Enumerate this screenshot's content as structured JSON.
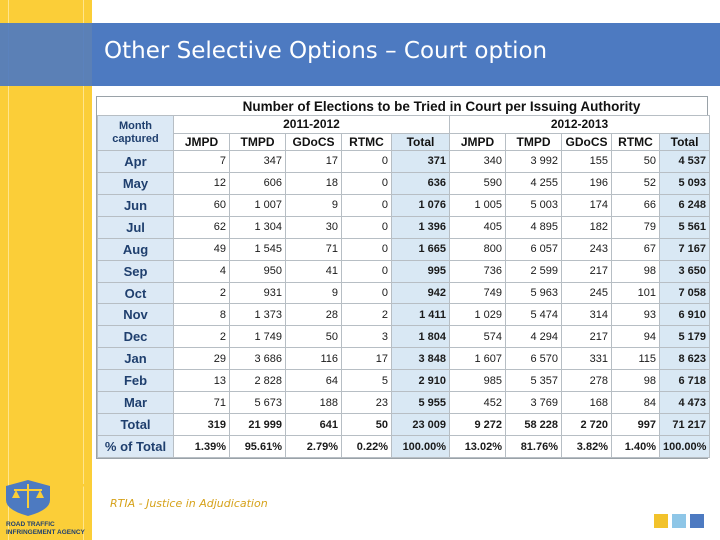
{
  "slide": {
    "title": "Other Selective Options – Court option",
    "footer_text": "RTIA - Justice in Adjudication",
    "logo_text_line1": "ROAD TRAFFIC",
    "logo_text_line2": "INFRINGEMENT AGENCY"
  },
  "table": {
    "heading": "Number of Elections to be Tried in Court per Issuing Authority",
    "month_header_line1": "Month",
    "month_header_line2": "captured",
    "year1": "2011-2012",
    "year2": "2012-2013",
    "columns": [
      "JMPD",
      "TMPD",
      "GDoCS",
      "RTMC",
      "Total",
      "JMPD",
      "TMPD",
      "GDoCS",
      "RTMC",
      "Total"
    ],
    "rows": [
      {
        "month": "Apr",
        "v": [
          "7",
          "347",
          "17",
          "0",
          "371",
          "340",
          "3 992",
          "155",
          "50",
          "4 537"
        ]
      },
      {
        "month": "May",
        "v": [
          "12",
          "606",
          "18",
          "0",
          "636",
          "590",
          "4 255",
          "196",
          "52",
          "5 093"
        ]
      },
      {
        "month": "Jun",
        "v": [
          "60",
          "1 007",
          "9",
          "0",
          "1 076",
          "1 005",
          "5 003",
          "174",
          "66",
          "6 248"
        ]
      },
      {
        "month": "Jul",
        "v": [
          "62",
          "1 304",
          "30",
          "0",
          "1 396",
          "405",
          "4 895",
          "182",
          "79",
          "5 561"
        ]
      },
      {
        "month": "Aug",
        "v": [
          "49",
          "1 545",
          "71",
          "0",
          "1 665",
          "800",
          "6 057",
          "243",
          "67",
          "7 167"
        ]
      },
      {
        "month": "Sep",
        "v": [
          "4",
          "950",
          "41",
          "0",
          "995",
          "736",
          "2 599",
          "217",
          "98",
          "3 650"
        ]
      },
      {
        "month": "Oct",
        "v": [
          "2",
          "931",
          "9",
          "0",
          "942",
          "749",
          "5 963",
          "245",
          "101",
          "7 058"
        ]
      },
      {
        "month": "Nov",
        "v": [
          "8",
          "1 373",
          "28",
          "2",
          "1 411",
          "1 029",
          "5 474",
          "314",
          "93",
          "6 910"
        ]
      },
      {
        "month": "Dec",
        "v": [
          "2",
          "1 749",
          "50",
          "3",
          "1 804",
          "574",
          "4 294",
          "217",
          "94",
          "5 179"
        ]
      },
      {
        "month": "Jan",
        "v": [
          "29",
          "3 686",
          "116",
          "17",
          "3 848",
          "1 607",
          "6 570",
          "331",
          "115",
          "8 623"
        ]
      },
      {
        "month": "Feb",
        "v": [
          "13",
          "2 828",
          "64",
          "5",
          "2 910",
          "985",
          "5 357",
          "278",
          "98",
          "6 718"
        ]
      },
      {
        "month": "Mar",
        "v": [
          "71",
          "5 673",
          "188",
          "23",
          "5 955",
          "452",
          "3 769",
          "168",
          "84",
          "4 473"
        ]
      }
    ],
    "total_row": {
      "label": "Total",
      "v": [
        "319",
        "21 999",
        "641",
        "50",
        "23 009",
        "9 272",
        "58 228",
        "2 720",
        "997",
        "71 217"
      ]
    },
    "pct_row": {
      "label": "% of Total",
      "v": [
        "1.39%",
        "95.61%",
        "2.79%",
        "0.22%",
        "100.00%",
        "13.02%",
        "81.76%",
        "3.82%",
        "1.40%",
        "100.00%"
      ]
    }
  }
}
